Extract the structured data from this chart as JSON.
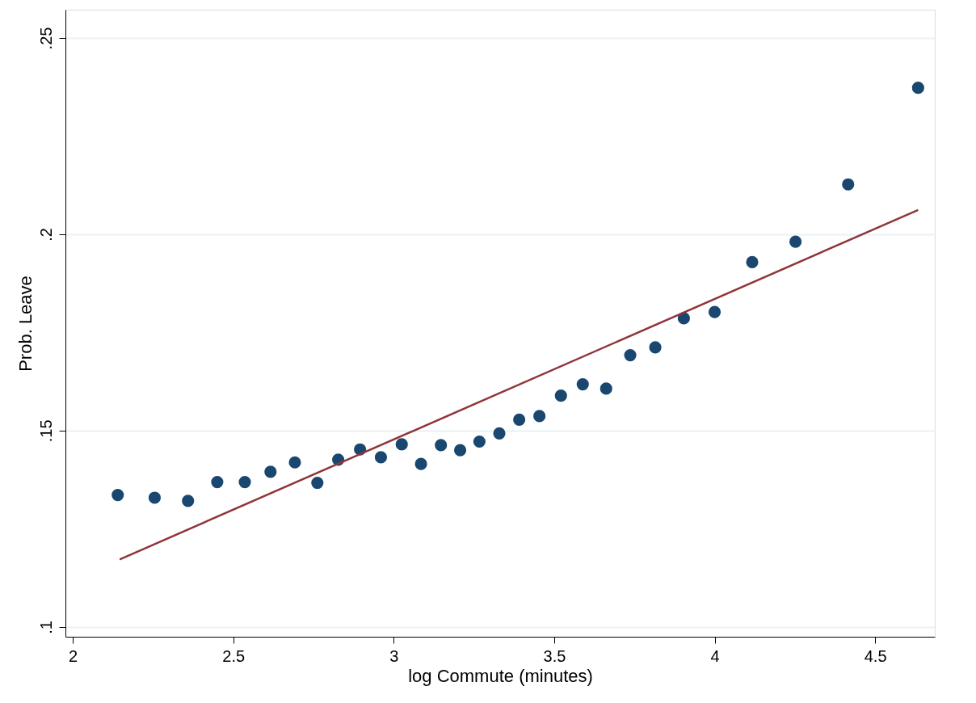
{
  "chart_data": {
    "type": "scatter",
    "xlabel": "log Commute (minutes)",
    "ylabel": "Prob. Leave",
    "xlim": [
      1.977,
      4.686
    ],
    "xticks": [
      2,
      2.5,
      3,
      3.5,
      4,
      4.5
    ],
    "ylim": [
      0.0975,
      0.2572
    ],
    "yticks": [
      {
        "value": 0.1,
        "label": ".1"
      },
      {
        "value": 0.15,
        "label": ".15"
      },
      {
        "value": 0.2,
        "label": ".2"
      },
      {
        "value": 0.25,
        "label": ".25"
      }
    ],
    "grid": "y",
    "marker": "circle",
    "series": [
      {
        "color": "#1a476f",
        "x": [
          2.14,
          2.255,
          2.359,
          2.45,
          2.536,
          2.616,
          2.692,
          2.762,
          2.827,
          2.895,
          2.96,
          3.025,
          3.085,
          3.147,
          3.207,
          3.267,
          3.329,
          3.391,
          3.454,
          3.521,
          3.589,
          3.662,
          3.737,
          3.815,
          3.904,
          4.0,
          4.117,
          4.252,
          4.416,
          4.634
        ],
        "values": [
          0.1336,
          0.1329,
          0.1321,
          0.1369,
          0.1369,
          0.1395,
          0.1419,
          0.1367,
          0.1426,
          0.1452,
          0.1432,
          0.1465,
          0.1415,
          0.1463,
          0.145,
          0.1472,
          0.1493,
          0.1528,
          0.1537,
          0.1589,
          0.1618,
          0.1607,
          0.1692,
          0.1712,
          0.1786,
          0.1802,
          0.1929,
          0.1981,
          0.2127,
          0.2373
        ]
      },
      {
        "type": "line",
        "marker": "none",
        "line_style": "solid",
        "color": "#90353b",
        "x": [
          2.146,
          4.634
        ],
        "values": [
          0.1172,
          0.2062
        ]
      }
    ]
  }
}
